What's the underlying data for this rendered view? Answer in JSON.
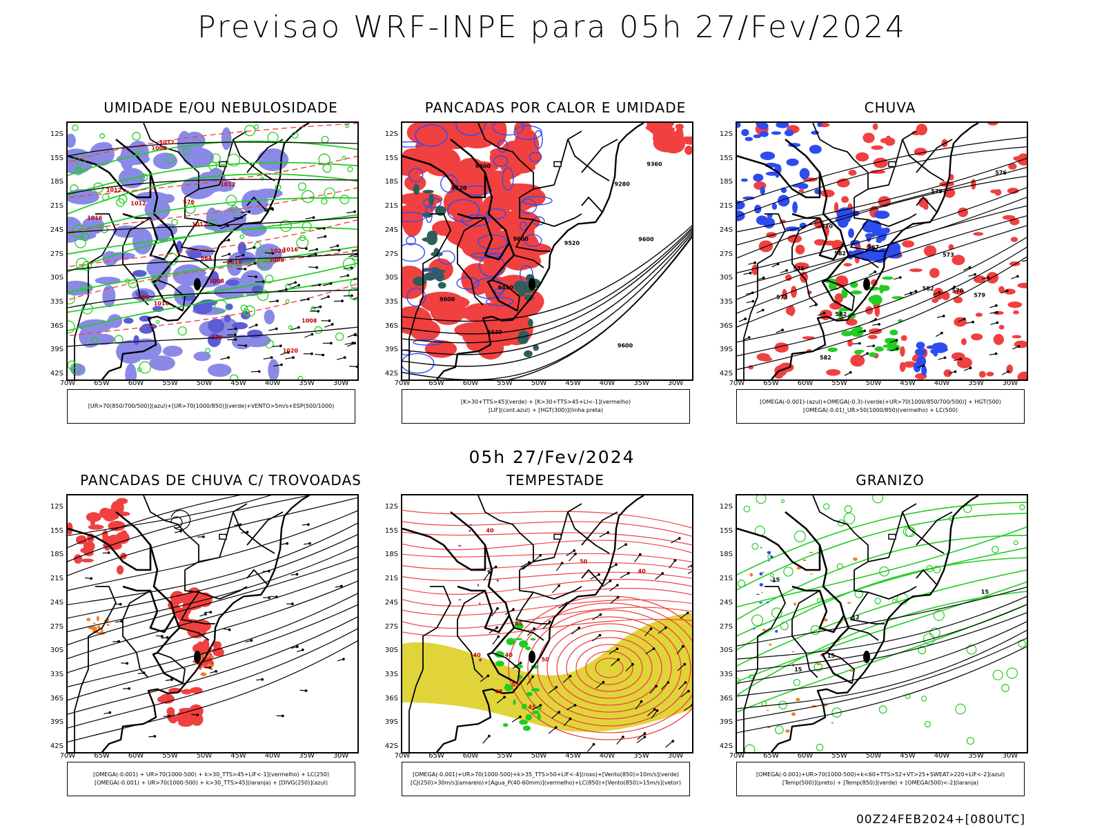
{
  "header": {
    "title": "Previsao WRF-INPE  para 05h 27/Fev/2024"
  },
  "mid_title": "05h 27/Fev/2024",
  "footer": "00Z24FEB2024+[080UTC]",
  "axes": {
    "lat_labels": [
      "12S",
      "15S",
      "18S",
      "21S",
      "24S",
      "27S",
      "30S",
      "33S",
      "36S",
      "39S",
      "42S"
    ],
    "lon_labels": [
      "70W",
      "65W",
      "60W",
      "55W",
      "50W",
      "45W",
      "40W",
      "35W",
      "30W"
    ]
  },
  "colors": {
    "humidity_blue": "#8a8ae6",
    "humidity_blue_dark": "#5c5cd6",
    "green": "#22cc22",
    "red": "#f04040",
    "blue": "#2c4cf0",
    "teal": "#2e5e56",
    "yellow": "#e0d43a",
    "orange": "#f08030",
    "purple": "#a020c0"
  },
  "panels": [
    {
      "title": "UMIDADE E/OU NEBULOSIDADE",
      "legend": [
        "[UR>70(850/700/500)](azul)+[UR>70(1000/850)](verde)+VENTO>5m/s+ESP(500/1000)"
      ],
      "contour_labels": [
        "1012",
        "1012",
        "1012",
        "1008",
        "1016",
        "1012",
        "1016",
        "1016",
        "1008",
        "1008",
        "1012",
        "1020",
        "1020",
        "1016",
        "1008",
        "570",
        "576",
        "564",
        "558"
      ]
    },
    {
      "title": "PANCADAS POR CALOR E UMIDADE",
      "legend": [
        "[K>30+TTS>45](verde) + [K>30+TTS>45+LI<-1](vermelho)",
        "[LIF](cont.azul) + [HGT(300)](linha preta)"
      ],
      "contour_labels": [
        "9600",
        "9600",
        "9600",
        "9600",
        "9600",
        "9520",
        "9520",
        "9440",
        "9440",
        "9360",
        "9280"
      ]
    },
    {
      "title": "CHUVA",
      "legend": [
        "[OMEGA(-0.001)-(azul)+OMEGA(-0.3)-(verde)+UR>70(1000/850/700/500)] + HGT(500)",
        "[OMEGA(-0.01)_UR>50(1000/850)(vermelho) + LC(500)"
      ],
      "contour_labels": [
        "582",
        "582",
        "582",
        "582",
        "579",
        "579",
        "576",
        "576",
        "573",
        "573",
        "570",
        "570",
        "567"
      ]
    },
    {
      "title": "PANCADAS DE CHUVA C/ TROVOADAS",
      "legend": [
        "[OMEGA(-0.001) + UR>70(1000-500) + k>30_TTS>45+LIF<-1](vermelho) + LC(250)",
        "[OMEGA(-0.001) + UR>70(1000-500) + k>30_TTS>45](laranja) + [DIVG(250)](azul)"
      ],
      "contour_labels": []
    },
    {
      "title": "TEMPESTADE",
      "legend": [
        "[OMEGA(-0.001)+UR>70(1000-500)+k>35_TTS>50+LIF<-4](roxo)+[Vento(850)>10m/s](verde)",
        "[CJ(250)>30m/s](amarelo)+[Agua_P(40-60mm)](vermelho)+LC(850)+[Vento(850)>15m/s](vetor)"
      ],
      "contour_labels": [
        "40",
        "40",
        "40",
        "45",
        "50",
        "40",
        "45",
        "55",
        "50",
        "45"
      ]
    },
    {
      "title": "GRANIZO",
      "legend": [
        "[OMEGA(-0.001)+UR>70(1000-500)+k<60+TTS>52+VT>25+SWEAT>220+LIF<-2](azul)",
        "[Temp(500)](preto) + [Temp(850)](verde) + [OMEGA(500)<-2](laranja)"
      ],
      "contour_labels": [
        "-12",
        "-15",
        "15",
        "15",
        "15"
      ]
    }
  ]
}
